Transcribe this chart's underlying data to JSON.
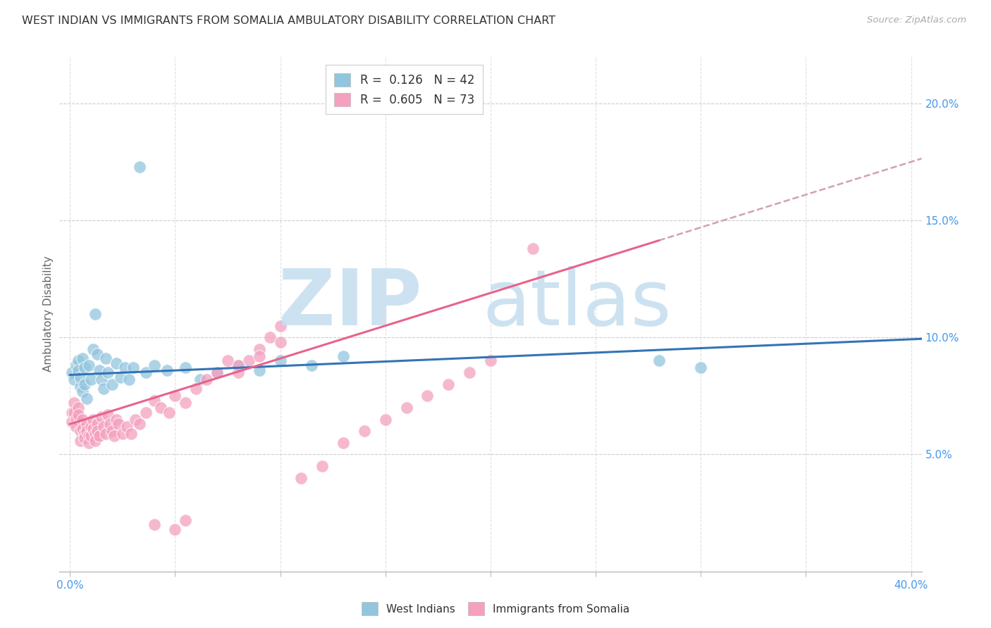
{
  "title": "WEST INDIAN VS IMMIGRANTS FROM SOMALIA AMBULATORY DISABILITY CORRELATION CHART",
  "source": "Source: ZipAtlas.com",
  "ylabel": "Ambulatory Disability",
  "legend1_r": "0.126",
  "legend1_n": "42",
  "legend2_r": "0.605",
  "legend2_n": "73",
  "blue_scatter_color": "#92c5de",
  "pink_scatter_color": "#f4a0be",
  "blue_line_color": "#3474b5",
  "pink_line_color": "#e8628a",
  "dash_line_color": "#d0a0b8",
  "grid_color": "#cccccc",
  "axis_color": "#bbbbbb",
  "text_color": "#333333",
  "label_color": "#666666",
  "tick_color": "#4499ee",
  "watermark_color": "#c8dff0",
  "wi_x": [
    0.001,
    0.002,
    0.003,
    0.004,
    0.004,
    0.005,
    0.005,
    0.006,
    0.006,
    0.007,
    0.007,
    0.008,
    0.009,
    0.01,
    0.011,
    0.012,
    0.013,
    0.014,
    0.015,
    0.016,
    0.017,
    0.018,
    0.02,
    0.022,
    0.024,
    0.026,
    0.028,
    0.03,
    0.033,
    0.036,
    0.04,
    0.046,
    0.055,
    0.062,
    0.07,
    0.08,
    0.09,
    0.1,
    0.115,
    0.13,
    0.28,
    0.3
  ],
  "wi_y": [
    0.085,
    0.082,
    0.088,
    0.09,
    0.086,
    0.079,
    0.083,
    0.077,
    0.091,
    0.08,
    0.087,
    0.074,
    0.088,
    0.082,
    0.095,
    0.11,
    0.093,
    0.086,
    0.082,
    0.078,
    0.091,
    0.085,
    0.08,
    0.089,
    0.083,
    0.087,
    0.082,
    0.087,
    0.173,
    0.085,
    0.088,
    0.086,
    0.087,
    0.082,
    0.085,
    0.088,
    0.086,
    0.09,
    0.088,
    0.092,
    0.09,
    0.087
  ],
  "som_x": [
    0.001,
    0.001,
    0.002,
    0.002,
    0.003,
    0.003,
    0.004,
    0.004,
    0.005,
    0.005,
    0.006,
    0.006,
    0.007,
    0.007,
    0.008,
    0.008,
    0.009,
    0.009,
    0.01,
    0.01,
    0.011,
    0.011,
    0.012,
    0.012,
    0.013,
    0.013,
    0.014,
    0.015,
    0.016,
    0.017,
    0.018,
    0.019,
    0.02,
    0.021,
    0.022,
    0.023,
    0.025,
    0.027,
    0.029,
    0.031,
    0.033,
    0.036,
    0.04,
    0.043,
    0.047,
    0.05,
    0.055,
    0.06,
    0.065,
    0.07,
    0.075,
    0.08,
    0.085,
    0.09,
    0.095,
    0.1,
    0.11,
    0.12,
    0.13,
    0.14,
    0.15,
    0.16,
    0.17,
    0.18,
    0.19,
    0.2,
    0.22,
    0.04,
    0.05,
    0.055,
    0.08,
    0.09,
    0.1
  ],
  "som_y": [
    0.068,
    0.064,
    0.072,
    0.068,
    0.065,
    0.062,
    0.07,
    0.067,
    0.06,
    0.056,
    0.065,
    0.061,
    0.059,
    0.057,
    0.063,
    0.06,
    0.058,
    0.055,
    0.062,
    0.058,
    0.065,
    0.061,
    0.059,
    0.056,
    0.063,
    0.06,
    0.058,
    0.066,
    0.062,
    0.059,
    0.067,
    0.063,
    0.06,
    0.058,
    0.065,
    0.063,
    0.059,
    0.062,
    0.059,
    0.065,
    0.063,
    0.068,
    0.073,
    0.07,
    0.068,
    0.075,
    0.072,
    0.078,
    0.082,
    0.085,
    0.09,
    0.085,
    0.09,
    0.095,
    0.1,
    0.105,
    0.04,
    0.045,
    0.055,
    0.06,
    0.065,
    0.07,
    0.075,
    0.08,
    0.085,
    0.09,
    0.138,
    0.02,
    0.018,
    0.022,
    0.088,
    0.092,
    0.098
  ],
  "xlim": [
    0.0,
    0.405
  ],
  "ylim": [
    0.0,
    0.22
  ],
  "ytick_vals": [
    0.05,
    0.1,
    0.15,
    0.2
  ],
  "ytick_labels": [
    "5.0%",
    "10.0%",
    "15.0%",
    "20.0%"
  ],
  "xtick_show": [
    0.0,
    0.4
  ],
  "xtick_labels": [
    "0.0%",
    "40.0%"
  ]
}
